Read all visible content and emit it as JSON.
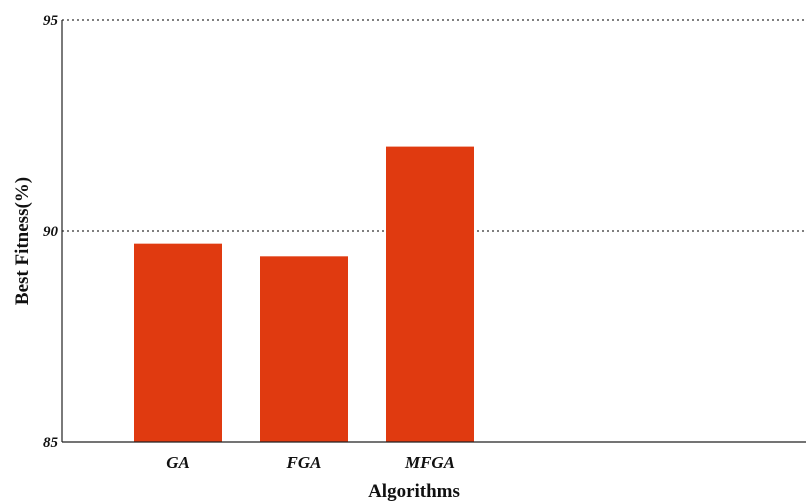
{
  "chart_data": {
    "type": "bar",
    "categories": [
      "GA",
      "FGA",
      "MFGA"
    ],
    "values": [
      89.7,
      89.4,
      92.0
    ],
    "xlabel": "Algorithms",
    "ylabel": "Best Fitness(%)",
    "ylim": [
      85,
      95
    ],
    "yticks": [
      85,
      90,
      95
    ],
    "grid": "horizontal-dotted",
    "bar_color": "#e03a10"
  }
}
